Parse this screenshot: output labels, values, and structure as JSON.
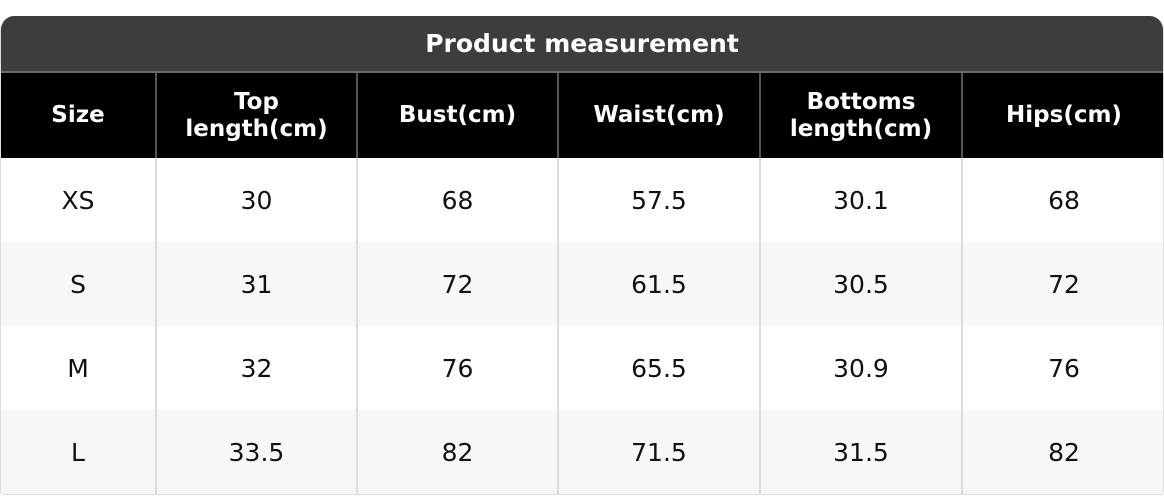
{
  "title": "Product measurement",
  "headers": [
    "Size",
    "Top length(cm)",
    "Bust(cm)",
    "Waist(cm)",
    "Bottoms length(cm)",
    "Hips(cm)"
  ],
  "rows": [
    [
      "XS",
      "30",
      "68",
      "57.5",
      "30.1",
      "68"
    ],
    [
      "S",
      "31",
      "72",
      "61.5",
      "30.5",
      "72"
    ],
    [
      "M",
      "32",
      "76",
      "65.5",
      "30.9",
      "76"
    ],
    [
      "L",
      "33.5",
      "82",
      "71.5",
      "31.5",
      "82"
    ]
  ]
}
